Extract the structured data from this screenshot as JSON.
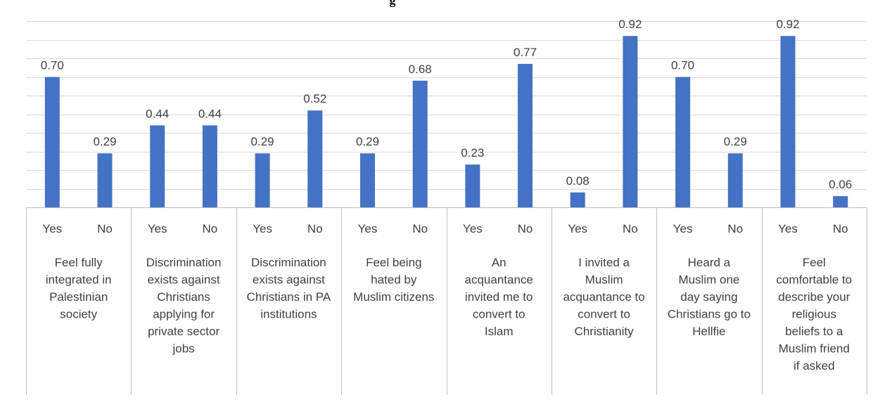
{
  "chart_data": {
    "type": "bar",
    "title": "g",
    "categories": [
      "Feel fully integrated in Palestinian society",
      "Discrimination exists against Christians applying for private sector jobs",
      "Discrimination exists against Christians in PA institutions",
      "Feel being hated by Muslim citizens",
      "An acquantance invited me to convert to Islam",
      "I invited a Muslim acquantance to convert to Christianity",
      "Heard a Muslim one day saying Christians go to Hellfie",
      "Feel comfortable to describe your religious beliefs to a Muslim friend if asked"
    ],
    "category_lines": [
      [
        "Feel fully",
        "integrated in",
        "Palestinian",
        "society"
      ],
      [
        "Discrimination",
        "exists against",
        "Christians",
        "applying for",
        "private sector",
        "jobs"
      ],
      [
        "Discrimination",
        "exists against",
        "Christians in PA",
        "institutions"
      ],
      [
        "Feel being",
        "hated by",
        "Muslim citizens"
      ],
      [
        "An",
        "acquantance",
        "invited me to",
        "convert to",
        "Islam"
      ],
      [
        "I invited a",
        "Muslim",
        "acquantance to",
        "convert to",
        "Christianity"
      ],
      [
        "Heard a",
        "Muslim one",
        "day saying",
        "Christians go to",
        "Hellfie"
      ],
      [
        "Feel",
        "comfortable to",
        "describe your",
        "religious",
        "beliefs to a",
        "Muslim friend",
        "if asked"
      ]
    ],
    "subcategories": [
      "Yes",
      "No"
    ],
    "values": [
      [
        0.7,
        0.29
      ],
      [
        0.44,
        0.44
      ],
      [
        0.29,
        0.52
      ],
      [
        0.29,
        0.68
      ],
      [
        0.23,
        0.77
      ],
      [
        0.08,
        0.92
      ],
      [
        0.7,
        0.29
      ],
      [
        0.92,
        0.06
      ]
    ],
    "value_labels": [
      [
        "0.70",
        "0.29"
      ],
      [
        "0.44",
        "0.44"
      ],
      [
        "0.29",
        "0.52"
      ],
      [
        "0.29",
        "0.68"
      ],
      [
        "0.23",
        "0.77"
      ],
      [
        "0.08",
        "0.92"
      ],
      [
        "0.70",
        "0.29"
      ],
      [
        "0.92",
        "0.06"
      ]
    ],
    "ylim": [
      0,
      1.0
    ],
    "grid": true,
    "bar_color": "#4472C4",
    "grid_color": "#D9D9D9",
    "axis_line_color": "#BFBFBF"
  }
}
